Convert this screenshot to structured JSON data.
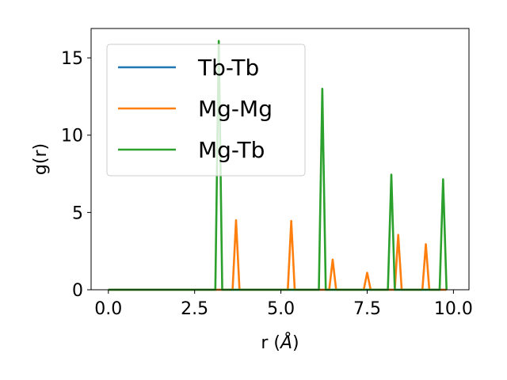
{
  "chart_data": {
    "type": "line",
    "title": "",
    "xlabel": "r (",
    "xlabel_unit": "Å",
    "xlabel_close": ")",
    "ylabel": "g(r)",
    "xlim": [
      -0.5,
      10.45
    ],
    "ylim": [
      0,
      16.9
    ],
    "xticks": [
      0.0,
      2.5,
      5.0,
      7.5,
      10.0
    ],
    "xtick_labels": [
      "0.0",
      "2.5",
      "5.0",
      "7.5",
      "10.0"
    ],
    "yticks": [
      0,
      5,
      10,
      15
    ],
    "ytick_labels": [
      "0",
      "5",
      "10",
      "15"
    ],
    "grid": false,
    "legend_position": "upper-left",
    "series": [
      {
        "name": "Tb-Tb",
        "color": "#1f77b4",
        "x": [
          0.0,
          9.8
        ],
        "y": [
          0,
          0
        ]
      },
      {
        "name": "Mg-Mg",
        "color": "#ff7f0e",
        "x": [
          0.0,
          3.6,
          3.7,
          3.8,
          5.2,
          5.3,
          5.4,
          6.4,
          6.5,
          6.6,
          7.4,
          7.5,
          7.6,
          8.3,
          8.4,
          8.5,
          9.1,
          9.2,
          9.3,
          9.8
        ],
        "y": [
          0,
          0,
          4.5,
          0,
          0,
          4.45,
          0,
          0,
          1.95,
          0,
          0,
          1.1,
          0,
          0,
          3.55,
          0,
          0,
          2.95,
          0,
          0
        ]
      },
      {
        "name": "Mg-Tb",
        "color": "#2ca02c",
        "x": [
          0.0,
          3.1,
          3.2,
          3.3,
          6.1,
          6.2,
          6.3,
          8.1,
          8.2,
          8.3,
          9.6,
          9.7,
          9.8
        ],
        "y": [
          0,
          0,
          16.1,
          0,
          0,
          13.0,
          0,
          0,
          7.45,
          0,
          0,
          7.15,
          0
        ]
      }
    ]
  }
}
